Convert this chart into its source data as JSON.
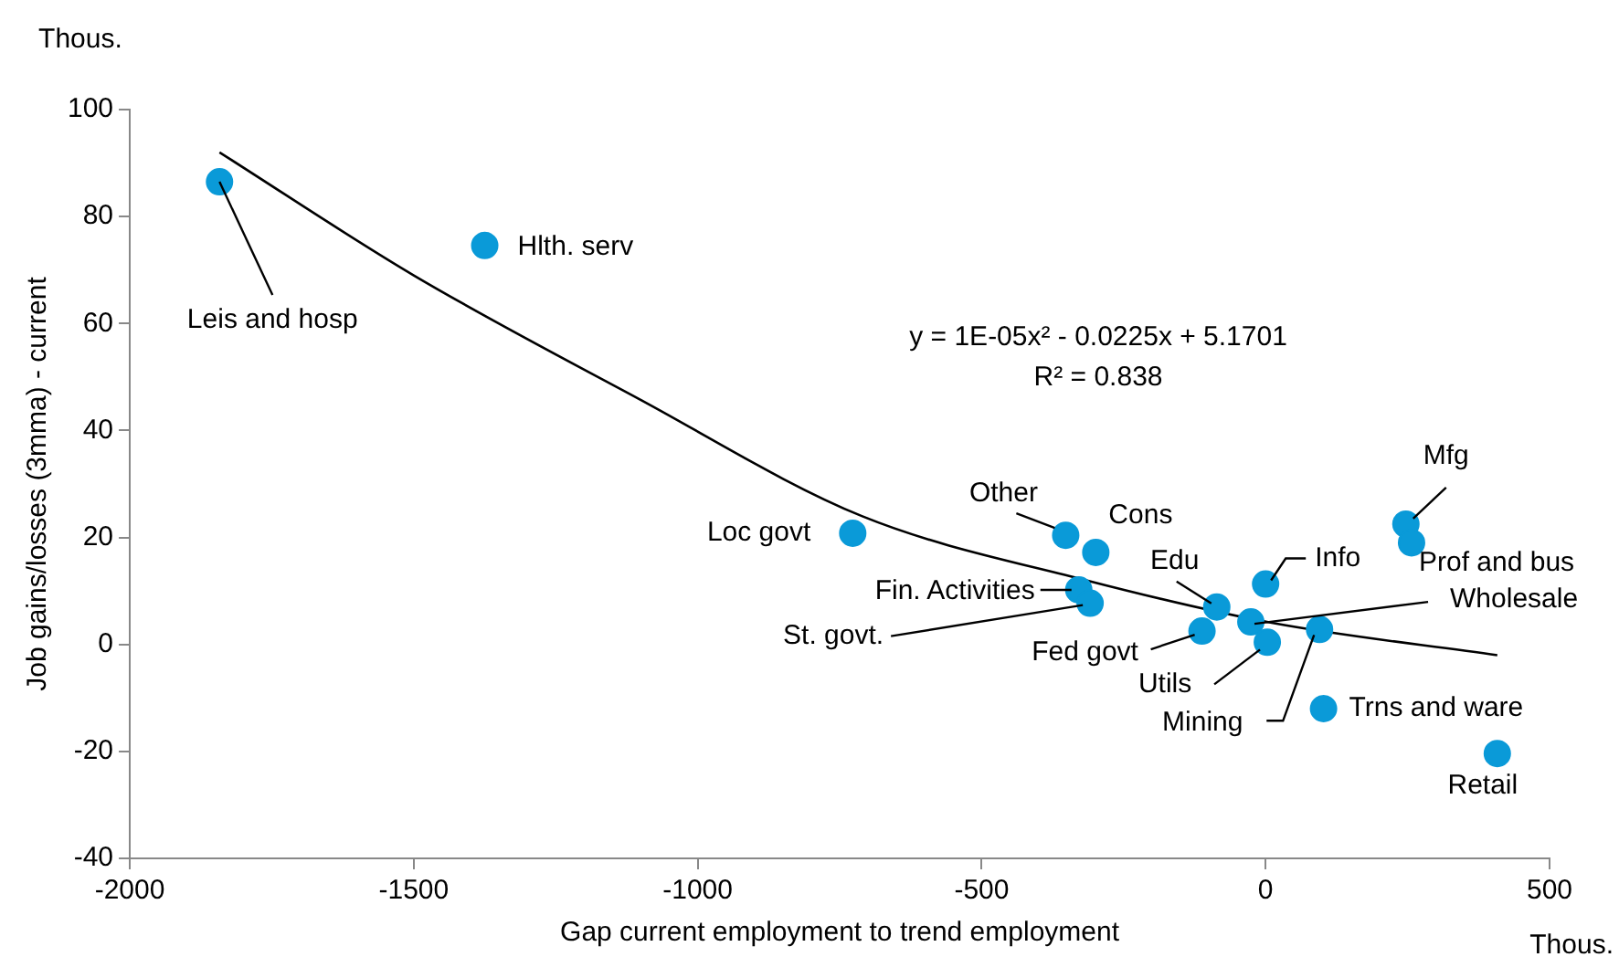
{
  "chart_data": {
    "type": "scatter",
    "xlabel": "Gap current employment to trend employment",
    "ylabel": "Job gains/losses (3mma) - current",
    "annotations": [
      "Thous.",
      "Thous.",
      "y = 1E-05x² - 0.0225x + 5.1701",
      "R² = 0.838"
    ],
    "xlim": [
      -2000,
      500
    ],
    "xticks": [
      -2000,
      -1500,
      -1000,
      -500,
      0,
      500
    ],
    "ylim": [
      -40,
      100
    ],
    "yticks": [
      -40,
      -20,
      0,
      20,
      40,
      60,
      80,
      100
    ],
    "grid": false,
    "legend": false,
    "series": [
      {
        "color": "#0a9ad8",
        "marker": "circle",
        "x": [
          -1842,
          -1375,
          -727,
          -352,
          -299,
          -329,
          -309,
          -86,
          -112,
          -26,
          3,
          95,
          0,
          102,
          408,
          247,
          257
        ],
        "values": [
          86.5,
          74.6,
          20.8,
          20.4,
          17.2,
          10.2,
          7.7,
          7.0,
          2.5,
          4.2,
          0.4,
          2.8,
          11.3,
          -12.0,
          -20.4,
          22.5,
          19.0
        ],
        "value_labels": [
          "Leis and hosp",
          "Hlth. serv",
          "Loc govt",
          "Other",
          "Cons",
          "Fin. Activities",
          "St. govt.",
          "Edu",
          "Fed govt",
          "Wholesale",
          "Utils",
          "Mining",
          "Info",
          "Trns and ware",
          "Retail",
          "Mfg",
          "Prof and bus"
        ]
      },
      {
        "type": "line",
        "color": "#000000",
        "line_style": "solid",
        "marker": "none",
        "x": [
          -1842,
          -1500,
          -1105,
          -711,
          -316,
          13,
          408
        ],
        "values": [
          92,
          69,
          46,
          24,
          12,
          4,
          -2
        ]
      }
    ]
  }
}
